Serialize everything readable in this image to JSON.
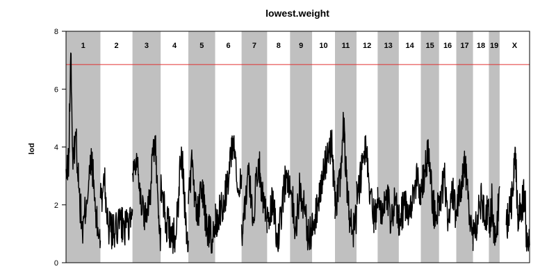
{
  "chart_data": {
    "type": "line",
    "title": "lowest.weight",
    "ylabel": "lod",
    "xlabel": "",
    "ylim": [
      0,
      8
    ],
    "yticks": [
      0,
      2,
      4,
      6,
      8
    ],
    "threshold": {
      "value": 6.85,
      "color": "#e03030"
    },
    "band_color": "#c0c0c0",
    "line_color": "#000000",
    "chromosomes": [
      {
        "label": "1",
        "length": 195,
        "shaded": true,
        "peaks": [
          {
            "pos": 0.03,
            "lod": 3.0
          },
          {
            "pos": 0.08,
            "lod": 3.6
          },
          {
            "pos": 0.14,
            "lod": 7.4
          },
          {
            "pos": 0.2,
            "lod": 3.2
          },
          {
            "pos": 0.28,
            "lod": 4.6
          },
          {
            "pos": 0.38,
            "lod": 2.5
          },
          {
            "pos": 0.48,
            "lod": 1.0
          },
          {
            "pos": 0.6,
            "lod": 2.2
          },
          {
            "pos": 0.75,
            "lod": 3.6
          },
          {
            "pos": 0.88,
            "lod": 1.4
          },
          {
            "pos": 0.97,
            "lod": 1.0
          }
        ]
      },
      {
        "label": "2",
        "length": 182,
        "shaded": false,
        "peaks": [
          {
            "pos": 0.03,
            "lod": 2.2
          },
          {
            "pos": 0.12,
            "lod": 3.0
          },
          {
            "pos": 0.25,
            "lod": 1.2
          },
          {
            "pos": 0.45,
            "lod": 1.0
          },
          {
            "pos": 0.6,
            "lod": 1.4
          },
          {
            "pos": 0.8,
            "lod": 1.2
          },
          {
            "pos": 0.97,
            "lod": 1.5
          }
        ]
      },
      {
        "label": "3",
        "length": 160,
        "shaded": true,
        "peaks": [
          {
            "pos": 0.05,
            "lod": 3.2
          },
          {
            "pos": 0.15,
            "lod": 3.8
          },
          {
            "pos": 0.3,
            "lod": 2.2
          },
          {
            "pos": 0.45,
            "lod": 1.5
          },
          {
            "pos": 0.6,
            "lod": 2.2
          },
          {
            "pos": 0.8,
            "lod": 4.4
          },
          {
            "pos": 0.95,
            "lod": 1.0
          }
        ]
      },
      {
        "label": "4",
        "length": 157,
        "shaded": false,
        "peaks": [
          {
            "pos": 0.05,
            "lod": 2.5
          },
          {
            "pos": 0.2,
            "lod": 1.4
          },
          {
            "pos": 0.4,
            "lod": 1.0
          },
          {
            "pos": 0.55,
            "lod": 0.8
          },
          {
            "pos": 0.75,
            "lod": 4.0
          },
          {
            "pos": 0.95,
            "lod": 0.8
          }
        ]
      },
      {
        "label": "5",
        "length": 152,
        "shaded": true,
        "peaks": [
          {
            "pos": 0.05,
            "lod": 2.6
          },
          {
            "pos": 0.15,
            "lod": 3.6
          },
          {
            "pos": 0.3,
            "lod": 1.4
          },
          {
            "pos": 0.5,
            "lod": 2.6
          },
          {
            "pos": 0.7,
            "lod": 1.2
          },
          {
            "pos": 0.9,
            "lod": 0.8
          }
        ]
      },
      {
        "label": "6",
        "length": 150,
        "shaded": false,
        "peaks": [
          {
            "pos": 0.05,
            "lod": 1.5
          },
          {
            "pos": 0.25,
            "lod": 2.0
          },
          {
            "pos": 0.45,
            "lod": 2.6
          },
          {
            "pos": 0.7,
            "lod": 4.4
          },
          {
            "pos": 0.85,
            "lod": 2.4
          },
          {
            "pos": 0.97,
            "lod": 2.8
          }
        ]
      },
      {
        "label": "7",
        "length": 145,
        "shaded": true,
        "peaks": [
          {
            "pos": 0.05,
            "lod": 1.0
          },
          {
            "pos": 0.25,
            "lod": 3.4
          },
          {
            "pos": 0.45,
            "lod": 1.5
          },
          {
            "pos": 0.65,
            "lod": 3.6
          },
          {
            "pos": 0.85,
            "lod": 2.2
          },
          {
            "pos": 0.97,
            "lod": 1.5
          }
        ]
      },
      {
        "label": "8",
        "length": 130,
        "shaded": false,
        "peaks": [
          {
            "pos": 0.05,
            "lod": 1.4
          },
          {
            "pos": 0.25,
            "lod": 2.2
          },
          {
            "pos": 0.45,
            "lod": 0.5
          },
          {
            "pos": 0.65,
            "lod": 2.0
          },
          {
            "pos": 0.85,
            "lod": 3.2
          },
          {
            "pos": 0.97,
            "lod": 2.4
          }
        ]
      },
      {
        "label": "9",
        "length": 125,
        "shaded": true,
        "peaks": [
          {
            "pos": 0.05,
            "lod": 2.5
          },
          {
            "pos": 0.25,
            "lod": 1.2
          },
          {
            "pos": 0.45,
            "lod": 2.6
          },
          {
            "pos": 0.65,
            "lod": 1.8
          },
          {
            "pos": 0.85,
            "lod": 0.8
          },
          {
            "pos": 0.97,
            "lod": 1.2
          }
        ]
      },
      {
        "label": "10",
        "length": 130,
        "shaded": false,
        "peaks": [
          {
            "pos": 0.05,
            "lod": 1.2
          },
          {
            "pos": 0.25,
            "lod": 2.0
          },
          {
            "pos": 0.45,
            "lod": 3.0
          },
          {
            "pos": 0.65,
            "lod": 3.6
          },
          {
            "pos": 0.85,
            "lod": 4.2
          },
          {
            "pos": 0.97,
            "lod": 2.5
          }
        ]
      },
      {
        "label": "11",
        "length": 122,
        "shaded": true,
        "peaks": [
          {
            "pos": 0.05,
            "lod": 2.0
          },
          {
            "pos": 0.25,
            "lod": 3.0
          },
          {
            "pos": 0.4,
            "lod": 4.8
          },
          {
            "pos": 0.6,
            "lod": 2.0
          },
          {
            "pos": 0.8,
            "lod": 1.0
          },
          {
            "pos": 0.97,
            "lod": 1.4
          }
        ]
      },
      {
        "label": "12",
        "length": 120,
        "shaded": false,
        "peaks": [
          {
            "pos": 0.05,
            "lod": 2.2
          },
          {
            "pos": 0.25,
            "lod": 3.2
          },
          {
            "pos": 0.45,
            "lod": 4.0
          },
          {
            "pos": 0.65,
            "lod": 2.4
          },
          {
            "pos": 0.85,
            "lod": 1.4
          },
          {
            "pos": 0.97,
            "lod": 2.0
          }
        ]
      },
      {
        "label": "13",
        "length": 120,
        "shaded": true,
        "peaks": [
          {
            "pos": 0.05,
            "lod": 2.2
          },
          {
            "pos": 0.25,
            "lod": 1.6
          },
          {
            "pos": 0.45,
            "lod": 2.4
          },
          {
            "pos": 0.65,
            "lod": 1.4
          },
          {
            "pos": 0.85,
            "lod": 2.2
          },
          {
            "pos": 0.97,
            "lod": 1.2
          }
        ]
      },
      {
        "label": "14",
        "length": 125,
        "shaded": false,
        "peaks": [
          {
            "pos": 0.05,
            "lod": 1.5
          },
          {
            "pos": 0.25,
            "lod": 2.0
          },
          {
            "pos": 0.45,
            "lod": 1.5
          },
          {
            "pos": 0.65,
            "lod": 2.6
          },
          {
            "pos": 0.85,
            "lod": 3.0
          },
          {
            "pos": 0.97,
            "lod": 2.0
          }
        ]
      },
      {
        "label": "15",
        "length": 103,
        "shaded": true,
        "peaks": [
          {
            "pos": 0.05,
            "lod": 2.6
          },
          {
            "pos": 0.25,
            "lod": 3.2
          },
          {
            "pos": 0.45,
            "lod": 4.0
          },
          {
            "pos": 0.65,
            "lod": 2.0
          },
          {
            "pos": 0.85,
            "lod": 1.6
          },
          {
            "pos": 0.97,
            "lod": 2.2
          }
        ]
      },
      {
        "label": "16",
        "length": 98,
        "shaded": false,
        "peaks": [
          {
            "pos": 0.05,
            "lod": 1.8
          },
          {
            "pos": 0.3,
            "lod": 3.0
          },
          {
            "pos": 0.55,
            "lod": 1.4
          },
          {
            "pos": 0.8,
            "lod": 2.4
          },
          {
            "pos": 0.97,
            "lod": 1.6
          }
        ]
      },
      {
        "label": "17",
        "length": 95,
        "shaded": true,
        "peaks": [
          {
            "pos": 0.05,
            "lod": 2.0
          },
          {
            "pos": 0.3,
            "lod": 2.8
          },
          {
            "pos": 0.55,
            "lod": 3.4
          },
          {
            "pos": 0.8,
            "lod": 1.6
          },
          {
            "pos": 0.97,
            "lod": 1.2
          }
        ]
      },
      {
        "label": "18",
        "length": 90,
        "shaded": false,
        "peaks": [
          {
            "pos": 0.05,
            "lod": 1.0
          },
          {
            "pos": 0.3,
            "lod": 1.6
          },
          {
            "pos": 0.55,
            "lod": 2.2
          },
          {
            "pos": 0.8,
            "lod": 1.4
          },
          {
            "pos": 0.97,
            "lod": 2.2
          }
        ]
      },
      {
        "label": "19",
        "length": 61,
        "shaded": true,
        "peaks": [
          {
            "pos": 0.05,
            "lod": 1.2
          },
          {
            "pos": 0.3,
            "lod": 2.2
          },
          {
            "pos": 0.55,
            "lod": 0.6
          },
          {
            "pos": 0.8,
            "lod": 1.4
          },
          {
            "pos": 0.97,
            "lod": 2.6
          }
        ]
      },
      {
        "label": "X",
        "length": 170,
        "shaded": false,
        "gap_until": 0.22,
        "peaks": [
          {
            "pos": 0.22,
            "lod": 1.3
          },
          {
            "pos": 0.3,
            "lod": 1.6
          },
          {
            "pos": 0.45,
            "lod": 2.4
          },
          {
            "pos": 0.52,
            "lod": 4.1
          },
          {
            "pos": 0.6,
            "lod": 1.6
          },
          {
            "pos": 0.75,
            "lod": 2.0
          },
          {
            "pos": 0.85,
            "lod": 2.5
          },
          {
            "pos": 0.9,
            "lod": 0.4
          },
          {
            "pos": 1.0,
            "lod": 0.6
          }
        ]
      }
    ]
  }
}
